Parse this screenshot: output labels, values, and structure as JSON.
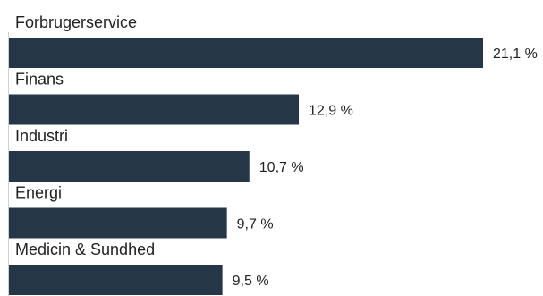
{
  "chart_data": {
    "type": "bar",
    "orientation": "horizontal",
    "categories": [
      "Forbrugerservice",
      "Finans",
      "Industri",
      "Energi",
      "Medicin & Sundhed"
    ],
    "values": [
      21.1,
      12.9,
      10.7,
      9.7,
      9.5
    ],
    "value_labels": [
      "21,1 %",
      "12,9 %",
      "10,7 %",
      "9,7 %",
      "9,5 %"
    ],
    "unit": "%",
    "xlim": [
      0,
      21.1
    ],
    "grid": false,
    "legend": "none",
    "bar_color": "#253746",
    "axis_color": "#c8d3dc"
  }
}
